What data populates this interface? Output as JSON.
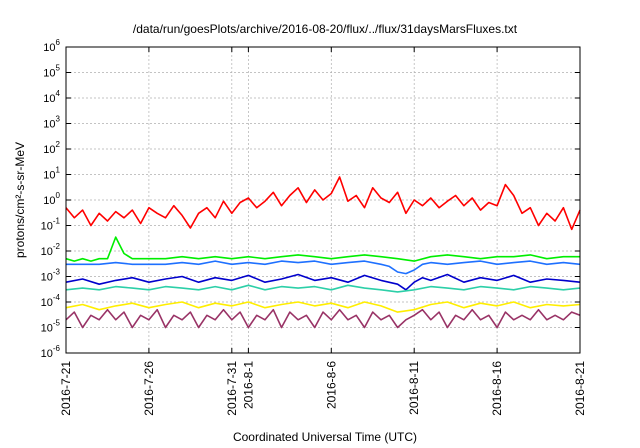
{
  "chart_data": {
    "type": "line",
    "title": "/data/run/goesPlots/archive/2016-08-20/flux/../flux/31daysMarsFluxes.txt",
    "xlabel": "Coordinated Universal Time (UTC)",
    "ylabel": "protons/cm²-s-sr-MeV",
    "yscale": "log",
    "ylim": [
      1e-06,
      1000000.0
    ],
    "xlim": [
      "2016-07-21",
      "2016-08-21"
    ],
    "grid": "dashed",
    "legend": "none",
    "y_ticks": [
      {
        "base": "10",
        "exp": "-6"
      },
      {
        "base": "10",
        "exp": "-5"
      },
      {
        "base": "10",
        "exp": "-4"
      },
      {
        "base": "10",
        "exp": "-3"
      },
      {
        "base": "10",
        "exp": "-2"
      },
      {
        "base": "10",
        "exp": "-1"
      },
      {
        "base": "10",
        "exp": "0"
      },
      {
        "base": "10",
        "exp": "1"
      },
      {
        "base": "10",
        "exp": "2"
      },
      {
        "base": "10",
        "exp": "3"
      },
      {
        "base": "10",
        "exp": "4"
      },
      {
        "base": "10",
        "exp": "5"
      },
      {
        "base": "10",
        "exp": "6"
      }
    ],
    "x_ticks": [
      "2016-7-21",
      "2016-7-26",
      "2016-7-31",
      "2016-8-1",
      "2016-8-6",
      "2016-8-11",
      "2016-8-16",
      "2016-8-21"
    ],
    "x_tick_days": [
      0,
      5,
      10,
      11,
      16,
      21,
      26,
      31
    ],
    "series": [
      {
        "color": "#ff0000",
        "x": [
          0,
          0.5,
          1,
          1.5,
          2,
          2.5,
          3,
          3.5,
          4,
          4.5,
          5,
          5.5,
          6,
          6.5,
          7,
          7.5,
          8,
          8.5,
          9,
          9.5,
          10,
          10.5,
          11,
          11.5,
          12,
          12.5,
          13,
          13.5,
          14,
          14.5,
          15,
          15.5,
          16,
          16.5,
          17,
          17.5,
          18,
          18.5,
          19,
          19.5,
          20,
          20.5,
          21,
          21.5,
          22,
          22.5,
          23,
          23.5,
          24,
          24.5,
          25,
          25.5,
          26,
          26.5,
          27,
          27.5,
          28,
          28.5,
          29,
          29.5,
          30,
          30.5,
          31
        ],
        "y": [
          0.5,
          0.2,
          0.4,
          0.1,
          0.3,
          0.15,
          0.35,
          0.2,
          0.4,
          0.12,
          0.5,
          0.3,
          0.2,
          0.6,
          0.25,
          0.08,
          0.3,
          0.5,
          0.2,
          0.9,
          0.3,
          0.8,
          1.2,
          0.5,
          0.9,
          2.0,
          0.6,
          1.5,
          3.0,
          0.8,
          2.5,
          1.0,
          1.8,
          8.0,
          0.9,
          1.5,
          0.5,
          3.0,
          1.2,
          0.8,
          2.0,
          0.3,
          1.0,
          0.6,
          1.2,
          0.5,
          0.9,
          1.5,
          0.6,
          1.2,
          0.4,
          0.8,
          0.6,
          4.0,
          1.5,
          0.3,
          0.5,
          0.1,
          0.3,
          0.15,
          0.5,
          0.07,
          0.4
        ]
      },
      {
        "color": "#00ee00",
        "x": [
          0,
          0.5,
          1,
          1.5,
          2,
          2.5,
          3,
          3.5,
          4,
          5,
          6,
          7,
          8,
          9,
          10,
          11,
          12,
          13,
          14,
          15,
          16,
          17,
          18,
          19,
          20,
          21,
          22,
          23,
          24,
          25,
          26,
          27,
          28,
          29,
          30,
          31
        ],
        "y": [
          0.005,
          0.004,
          0.005,
          0.004,
          0.005,
          0.005,
          0.035,
          0.008,
          0.005,
          0.005,
          0.005,
          0.006,
          0.005,
          0.006,
          0.005,
          0.006,
          0.005,
          0.006,
          0.007,
          0.006,
          0.005,
          0.006,
          0.007,
          0.006,
          0.005,
          0.004,
          0.006,
          0.007,
          0.006,
          0.005,
          0.006,
          0.006,
          0.007,
          0.005,
          0.006,
          0.006
        ]
      },
      {
        "color": "#1e70ff",
        "x": [
          0,
          1,
          2,
          3,
          4,
          5,
          6,
          7,
          8,
          9,
          10,
          11,
          12,
          13,
          14,
          15,
          16,
          17,
          18,
          19,
          19.5,
          20,
          20.5,
          21,
          21.5,
          22,
          23,
          24,
          25,
          26,
          27,
          28,
          29,
          30,
          31
        ],
        "y": [
          0.003,
          0.003,
          0.003,
          0.0035,
          0.003,
          0.003,
          0.003,
          0.0035,
          0.003,
          0.004,
          0.003,
          0.0035,
          0.003,
          0.004,
          0.0035,
          0.004,
          0.003,
          0.0035,
          0.004,
          0.003,
          0.0025,
          0.0015,
          0.0013,
          0.0018,
          0.003,
          0.0035,
          0.003,
          0.0035,
          0.004,
          0.003,
          0.0035,
          0.004,
          0.003,
          0.0035,
          0.003
        ]
      },
      {
        "color": "#0000cc",
        "x": [
          0,
          1,
          2,
          3,
          4,
          5,
          6,
          7,
          8,
          9,
          10,
          11,
          12,
          13,
          14,
          15,
          16,
          17,
          18,
          19,
          20,
          20.5,
          21,
          21.5,
          22,
          23,
          24,
          25,
          26,
          27,
          28,
          29,
          30,
          31
        ],
        "y": [
          0.0006,
          0.0008,
          0.0005,
          0.0007,
          0.0009,
          0.0006,
          0.0008,
          0.001,
          0.0006,
          0.0009,
          0.0007,
          0.0011,
          0.0006,
          0.0008,
          0.0012,
          0.0007,
          0.0009,
          0.0006,
          0.0011,
          0.0007,
          0.0005,
          0.0003,
          0.0006,
          0.0009,
          0.0007,
          0.0012,
          0.0006,
          0.0009,
          0.0007,
          0.0011,
          0.0006,
          0.0008,
          0.0007,
          0.0006
        ]
      },
      {
        "color": "#2ccfa8",
        "x": [
          0,
          1,
          2,
          3,
          4,
          5,
          6,
          7,
          8,
          9,
          10,
          11,
          12,
          13,
          14,
          15,
          16,
          17,
          18,
          19,
          20,
          21,
          22,
          23,
          24,
          25,
          26,
          27,
          28,
          29,
          30,
          31
        ],
        "y": [
          0.0003,
          0.00035,
          0.0003,
          0.0004,
          0.00035,
          0.0003,
          0.0004,
          0.00035,
          0.0003,
          0.0004,
          0.0003,
          0.00045,
          0.0003,
          0.0004,
          0.00035,
          0.0004,
          0.0003,
          0.00045,
          0.00035,
          0.0003,
          0.00025,
          0.0003,
          0.0004,
          0.00035,
          0.0003,
          0.0004,
          0.00035,
          0.0003,
          0.0004,
          0.00035,
          0.0003,
          0.00035
        ]
      },
      {
        "color": "#ffee00",
        "x": [
          0,
          1,
          2,
          3,
          4,
          5,
          6,
          7,
          8,
          9,
          10,
          11,
          12,
          13,
          14,
          15,
          16,
          17,
          18,
          19,
          20,
          21,
          22,
          23,
          24,
          25,
          26,
          27,
          28,
          29,
          30,
          31
        ],
        "y": [
          6e-05,
          8e-05,
          5e-05,
          7e-05,
          9e-05,
          6e-05,
          8e-05,
          0.0001,
          6e-05,
          9e-05,
          7e-05,
          0.0001,
          6e-05,
          8e-05,
          0.0001,
          7e-05,
          9e-05,
          6e-05,
          0.0001,
          7e-05,
          4e-05,
          5e-05,
          8e-05,
          0.0001,
          6e-05,
          9e-05,
          7e-05,
          0.0001,
          6e-05,
          8e-05,
          7e-05,
          8e-05
        ]
      },
      {
        "color": "#993366",
        "x": [
          0,
          0.5,
          1,
          1.5,
          2,
          2.5,
          3,
          3.5,
          4,
          4.5,
          5,
          5.5,
          6,
          6.5,
          7,
          7.5,
          8,
          8.5,
          9,
          9.5,
          10,
          10.5,
          11,
          11.5,
          12,
          12.5,
          13,
          13.5,
          14,
          14.5,
          15,
          15.5,
          16,
          16.5,
          17,
          17.5,
          18,
          18.5,
          19,
          19.5,
          20,
          20.5,
          21,
          21.5,
          22,
          22.5,
          23,
          23.5,
          24,
          24.5,
          25,
          25.5,
          26,
          26.5,
          27,
          27.5,
          28,
          28.5,
          29,
          29.5,
          30,
          30.5,
          31
        ],
        "y": [
          2e-05,
          4e-05,
          1e-05,
          3e-05,
          2e-05,
          5e-05,
          2e-05,
          4e-05,
          1e-05,
          3e-05,
          2e-05,
          5e-05,
          1e-05,
          3e-05,
          2e-05,
          4e-05,
          1e-05,
          3e-05,
          2e-05,
          5e-05,
          2e-05,
          4e-05,
          1e-05,
          3e-05,
          2e-05,
          5e-05,
          1e-05,
          4e-05,
          2e-05,
          3e-05,
          1e-05,
          4e-05,
          2e-05,
          5e-05,
          2e-05,
          3e-05,
          1e-05,
          4e-05,
          2e-05,
          3e-05,
          1e-05,
          2e-05,
          3e-05,
          5e-05,
          2e-05,
          4e-05,
          1e-05,
          3e-05,
          2e-05,
          5e-05,
          2e-05,
          3e-05,
          1e-05,
          4e-05,
          2e-05,
          3e-05,
          2e-05,
          5e-05,
          2e-05,
          3e-05,
          2e-05,
          4e-05,
          3e-05
        ]
      }
    ]
  }
}
